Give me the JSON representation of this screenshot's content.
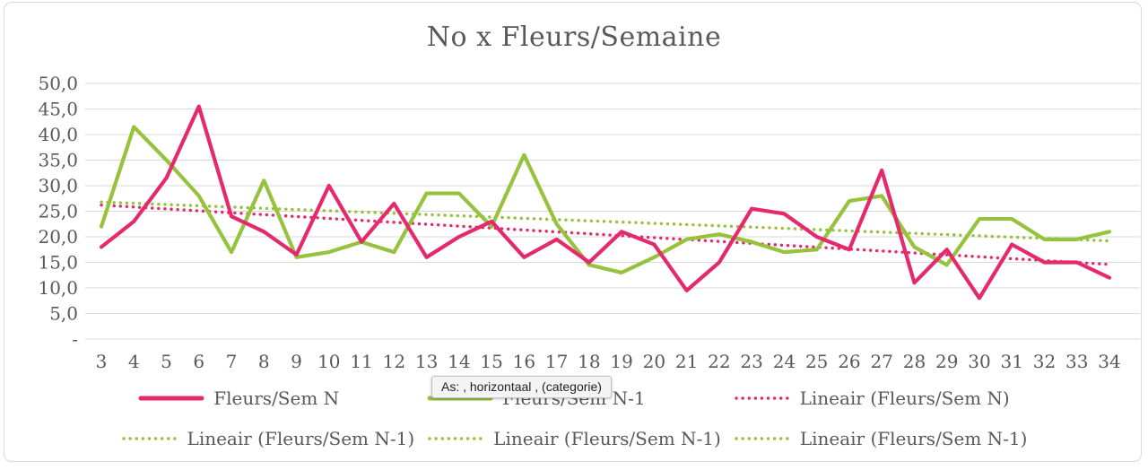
{
  "title": "No x Fleurs/Semaine",
  "tooltip": {
    "text": "As: , horizontaal , (categorie)"
  },
  "colors": {
    "pink": "#e42a6d",
    "green": "#96c23d",
    "grid": "#d9d9d9",
    "text": "#595959"
  },
  "chart_data": {
    "type": "line",
    "title": "No x Fleurs/Semaine",
    "categories": [
      3,
      4,
      5,
      6,
      7,
      8,
      9,
      10,
      11,
      12,
      13,
      14,
      15,
      16,
      17,
      18,
      19,
      20,
      21,
      22,
      23,
      24,
      25,
      26,
      27,
      28,
      29,
      30,
      31,
      32,
      33,
      34
    ],
    "series": [
      {
        "name": "Fleurs/Sem N",
        "color": "#e42a6d",
        "style": "solid",
        "values": [
          18,
          23,
          31.5,
          45.5,
          24,
          21,
          16.5,
          30,
          19,
          26.5,
          16,
          20,
          23,
          16,
          19.5,
          15,
          21,
          18.5,
          9.5,
          15,
          25.5,
          24.5,
          20,
          17.5,
          33,
          11,
          17.5,
          8,
          18.5,
          15,
          15,
          12
        ]
      },
      {
        "name": "Fleurs/Sem N-1",
        "color": "#96c23d",
        "style": "solid",
        "values": [
          22,
          41.5,
          35,
          28,
          17,
          31,
          16,
          17,
          19,
          17,
          28.5,
          28.5,
          22,
          36,
          22.5,
          14.5,
          13,
          16,
          19.5,
          20.5,
          19,
          17,
          17.5,
          27,
          28,
          18,
          14.5,
          23.5,
          23.5,
          19.5,
          19.5,
          21
        ]
      }
    ],
    "trendlines": [
      {
        "name": "Lineair (Fleurs/Sem N)",
        "color": "#e42a6d",
        "style": "dotted",
        "start_value": 26.2,
        "end_value": 14.6
      },
      {
        "name": "Lineair (Fleurs/Sem N-1)",
        "color": "#96c23d",
        "style": "dotted",
        "start_value": 26.8,
        "end_value": 19.2
      }
    ],
    "y_axis": {
      "min": 0,
      "max": 50,
      "step": 5,
      "ticks": [
        {
          "value": 50,
          "label": "50,0"
        },
        {
          "value": 45,
          "label": "45,0"
        },
        {
          "value": 40,
          "label": "40,0"
        },
        {
          "value": 35,
          "label": "35,0"
        },
        {
          "value": 30,
          "label": "30,0"
        },
        {
          "value": 25,
          "label": "25,0"
        },
        {
          "value": 20,
          "label": "20,0"
        },
        {
          "value": 15,
          "label": "15,0"
        },
        {
          "value": 10,
          "label": "10,0"
        },
        {
          "value": 5,
          "label": "5,0"
        },
        {
          "value": 0,
          "label": "-"
        }
      ]
    },
    "grid": true,
    "legend_position": "bottom"
  },
  "legend": {
    "row1": [
      {
        "label": "Fleurs/Sem N",
        "color": "#e42a6d",
        "style": "solid"
      },
      {
        "label": "Fleurs/Sem N-1",
        "color": "#96c23d",
        "style": "solid"
      },
      {
        "label": "Lineair (Fleurs/Sem N)",
        "color": "#e42a6d",
        "style": "dotted"
      }
    ],
    "row2": [
      {
        "label": "Lineair (Fleurs/Sem N-1)",
        "color": "#96c23d",
        "style": "dotted"
      },
      {
        "label": "Lineair (Fleurs/Sem N-1)",
        "color": "#96c23d",
        "style": "dotted"
      },
      {
        "label": "Lineair (Fleurs/Sem N-1)",
        "color": "#96c23d",
        "style": "dotted"
      }
    ]
  }
}
